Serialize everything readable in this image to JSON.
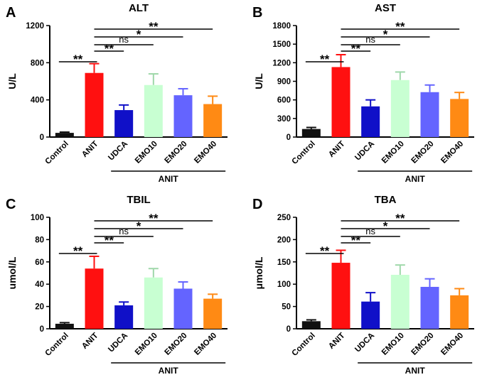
{
  "figure": {
    "categories": [
      "Control",
      "ANIT",
      "UDCA",
      "EMO10",
      "EMO20",
      "EMO40"
    ],
    "colors": [
      "#111111",
      "#ff1010",
      "#1010c8",
      "#c8ffd2",
      "#6464ff",
      "#ff8a14"
    ],
    "group_label": "ANIT"
  },
  "chart_data": [
    {
      "type": "bar",
      "panel": "A",
      "title": "ALT",
      "ylabel": "U/L",
      "ylim": [
        0,
        1200
      ],
      "yticks": [
        0,
        400,
        800,
        1200
      ],
      "values": [
        45,
        690,
        290,
        560,
        450,
        355
      ],
      "errors": [
        8,
        100,
        55,
        120,
        70,
        85
      ],
      "comparisons": [
        {
          "from": "Control",
          "to": "ANIT",
          "label": "**"
        },
        {
          "from": "ANIT",
          "to": "UDCA",
          "label": "**"
        },
        {
          "from": "ANIT",
          "to": "EMO10",
          "label": "ns"
        },
        {
          "from": "ANIT",
          "to": "EMO20",
          "label": "*"
        },
        {
          "from": "ANIT",
          "to": "EMO40",
          "label": "**"
        }
      ]
    },
    {
      "type": "bar",
      "panel": "B",
      "title": "AST",
      "ylabel": "U/L",
      "ylim": [
        0,
        1800
      ],
      "yticks": [
        0,
        300,
        600,
        900,
        1200,
        1500,
        1800
      ],
      "values": [
        130,
        1130,
        495,
        920,
        725,
        615
      ],
      "errors": [
        25,
        200,
        105,
        130,
        115,
        105
      ],
      "comparisons": [
        {
          "from": "Control",
          "to": "ANIT",
          "label": "**"
        },
        {
          "from": "ANIT",
          "to": "UDCA",
          "label": "**"
        },
        {
          "from": "ANIT",
          "to": "EMO10",
          "label": "ns"
        },
        {
          "from": "ANIT",
          "to": "EMO20",
          "label": "*"
        },
        {
          "from": "ANIT",
          "to": "EMO40",
          "label": "**"
        }
      ]
    },
    {
      "type": "bar",
      "panel": "C",
      "title": "TBIL",
      "ylabel": "umol/L",
      "ylim": [
        0,
        100
      ],
      "yticks": [
        0,
        20,
        40,
        60,
        80,
        100
      ],
      "values": [
        4.5,
        54,
        21,
        46,
        36,
        27
      ],
      "errors": [
        1,
        11,
        3,
        8,
        6,
        4
      ],
      "comparisons": [
        {
          "from": "Control",
          "to": "ANIT",
          "label": "**"
        },
        {
          "from": "ANIT",
          "to": "UDCA",
          "label": "**"
        },
        {
          "from": "ANIT",
          "to": "EMO10",
          "label": "ns"
        },
        {
          "from": "ANIT",
          "to": "EMO20",
          "label": "*"
        },
        {
          "from": "ANIT",
          "to": "EMO40",
          "label": "**"
        }
      ]
    },
    {
      "type": "bar",
      "panel": "D",
      "title": "TBA",
      "ylabel": "μmol/L",
      "ylim": [
        0,
        250
      ],
      "yticks": [
        0,
        50,
        100,
        150,
        200,
        250
      ],
      "values": [
        17,
        148,
        61,
        121,
        94,
        75
      ],
      "errors": [
        3,
        28,
        20,
        22,
        18,
        15
      ],
      "comparisons": [
        {
          "from": "Control",
          "to": "ANIT",
          "label": "**"
        },
        {
          "from": "ANIT",
          "to": "UDCA",
          "label": "**"
        },
        {
          "from": "ANIT",
          "to": "EMO10",
          "label": "ns"
        },
        {
          "from": "ANIT",
          "to": "EMO20",
          "label": "*"
        },
        {
          "from": "ANIT",
          "to": "EMO40",
          "label": "**"
        }
      ]
    }
  ]
}
